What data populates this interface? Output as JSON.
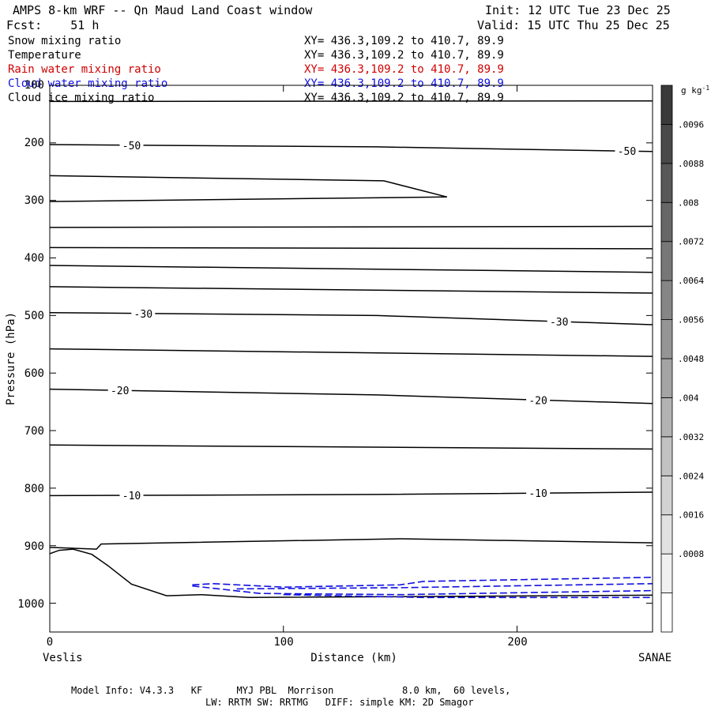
{
  "header": {
    "title": "AMPS 8-km WRF -- Qn Maud Land Coast window",
    "init": "Init: 12 UTC Tue 23 Dec 25",
    "fcst": "Fcst:    51 h",
    "valid": "Valid: 15 UTC Thu 25 Dec 25"
  },
  "fields": [
    {
      "name": "Snow mixing ratio",
      "xy": "XY= 436.3,109.2 to 410.7, 89.9",
      "color": "#000000"
    },
    {
      "name": "Temperature",
      "xy": "XY= 436.3,109.2 to 410.7, 89.9",
      "color": "#000000"
    },
    {
      "name": "Rain water mixing ratio",
      "xy": "XY= 436.3,109.2 to 410.7, 89.9",
      "color": "#d00000"
    },
    {
      "name": "Cloud water mixing ratio",
      "xy": "XY= 436.3,109.2 to 410.7, 89.9",
      "color": "#1010e0"
    },
    {
      "name": "Cloud ice mixing ratio",
      "xy": "XY= 436.3,109.2 to 410.7, 89.9",
      "color": "#000000"
    }
  ],
  "footer": {
    "line1": "Model Info: V4.3.3   KF      MYJ PBL  Morrison            8.0 km,  60 levels,",
    "line2": "LW: RRTM SW: RRTMG   DIFF: simple KM: 2D Smagor"
  },
  "chart_data": {
    "type": "contour",
    "xlabel": "Distance (km)",
    "ylabel": "Pressure (hPa)",
    "xlim": [
      0,
      258
    ],
    "ylim": [
      1050,
      100
    ],
    "x_ticks": [
      0,
      100,
      200
    ],
    "y_ticks": [
      100,
      200,
      300,
      400,
      500,
      600,
      700,
      800,
      900,
      1000
    ],
    "left_end_label": "Veslis",
    "right_end_label": "SANAE",
    "colorbar": {
      "unit": "g kg",
      "unit_exponent": "-1",
      "tick_labels": [
        ".0096",
        ".0088",
        ".008",
        ".0072",
        ".0064",
        ".0056",
        ".0048",
        ".004",
        ".0032",
        ".0024",
        ".0016",
        ".0008"
      ],
      "levels": 14,
      "color_light": "#ffffff",
      "color_dark": "#3a3a3a"
    },
    "temperature_contours": [
      {
        "points": [
          [
            0,
            128
          ],
          [
            258,
            127
          ]
        ]
      },
      {
        "points": [
          [
            0,
            203
          ],
          [
            140,
            207
          ],
          [
            258,
            215
          ]
        ],
        "labels": [
          {
            "text": "-50",
            "x": 35
          },
          {
            "text": "-50",
            "x": 247
          }
        ]
      },
      {
        "points": [
          [
            0,
            257
          ],
          [
            143,
            266
          ],
          [
            170,
            294
          ]
        ]
      },
      {
        "points": [
          [
            0,
            302
          ],
          [
            170,
            294
          ]
        ]
      },
      {
        "points": [
          [
            0,
            347
          ],
          [
            258,
            345
          ]
        ]
      },
      {
        "points": [
          [
            0,
            382
          ],
          [
            258,
            384
          ]
        ]
      },
      {
        "points": [
          [
            0,
            413
          ],
          [
            258,
            425
          ]
        ]
      },
      {
        "points": [
          [
            0,
            450
          ],
          [
            258,
            461
          ]
        ]
      },
      {
        "points": [
          [
            0,
            495
          ],
          [
            140,
            500
          ],
          [
            258,
            516
          ]
        ],
        "labels": [
          {
            "text": "-30",
            "x": 40
          },
          {
            "text": "-30",
            "x": 218
          }
        ]
      },
      {
        "points": [
          [
            0,
            558
          ],
          [
            258,
            571
          ]
        ]
      },
      {
        "points": [
          [
            0,
            628
          ],
          [
            140,
            638
          ],
          [
            258,
            653
          ]
        ],
        "labels": [
          {
            "text": "-20",
            "x": 30
          },
          {
            "text": "-20",
            "x": 209
          }
        ]
      },
      {
        "points": [
          [
            0,
            725
          ],
          [
            258,
            732
          ]
        ]
      },
      {
        "points": [
          [
            0,
            813
          ],
          [
            140,
            811
          ],
          [
            258,
            807
          ]
        ],
        "labels": [
          {
            "text": "-10",
            "x": 35
          },
          {
            "text": "-10",
            "x": 209
          }
        ]
      },
      {
        "points": [
          [
            0,
            903
          ],
          [
            20,
            906
          ],
          [
            22,
            897
          ],
          [
            150,
            888
          ],
          [
            258,
            895
          ]
        ]
      }
    ],
    "terrain": {
      "points": [
        [
          0,
          914
        ],
        [
          4,
          908
        ],
        [
          10,
          906
        ],
        [
          18,
          915
        ],
        [
          25,
          935
        ],
        [
          35,
          967
        ],
        [
          50,
          987
        ],
        [
          65,
          985
        ],
        [
          85,
          990
        ],
        [
          258,
          986
        ]
      ]
    },
    "cloud_water_contours": [
      {
        "points": [
          [
            61,
            968
          ],
          [
            70,
            966
          ],
          [
            100,
            972
          ],
          [
            150,
            968
          ],
          [
            160,
            962
          ],
          [
            258,
            955
          ]
        ]
      },
      {
        "points": [
          [
            61,
            970
          ],
          [
            90,
            983
          ],
          [
            150,
            985
          ],
          [
            258,
            978
          ]
        ]
      },
      {
        "points": [
          [
            80,
            975
          ],
          [
            150,
            973
          ],
          [
            258,
            966
          ]
        ]
      },
      {
        "points": [
          [
            100,
            985
          ],
          [
            160,
            990
          ],
          [
            258,
            990
          ]
        ]
      }
    ]
  }
}
